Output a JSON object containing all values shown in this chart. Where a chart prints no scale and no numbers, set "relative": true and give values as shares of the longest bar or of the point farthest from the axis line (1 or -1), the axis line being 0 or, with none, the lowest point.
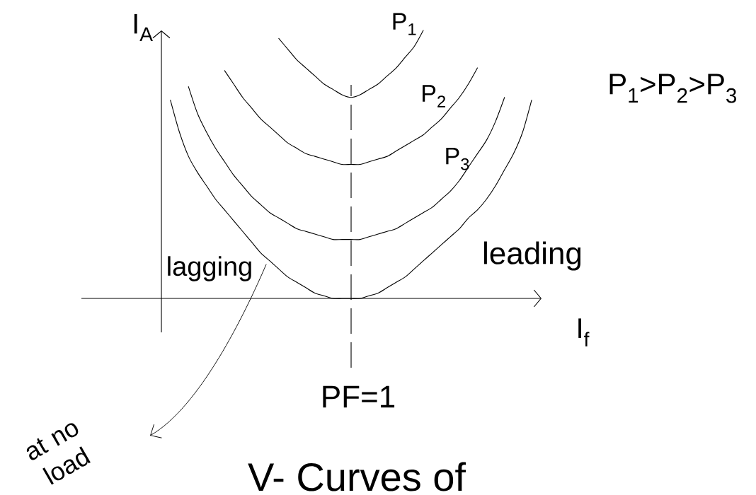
{
  "chart_data": {
    "type": "line",
    "relative": true,
    "title": "V- Curves of",
    "xlabel": "I$_{f}$",
    "ylabel": "I$_{A}$",
    "categories": [
      null,
      null,
      null,
      null,
      null,
      null,
      null,
      null,
      null,
      null,
      null,
      null,
      null,
      null,
      null,
      null,
      null,
      null,
      null,
      null,
      null,
      null,
      null,
      null,
      null,
      null,
      null,
      null,
      null,
      null,
      null,
      null,
      null,
      null,
      null,
      null,
      null,
      null,
      null,
      null,
      null
    ],
    "series": [
      {
        "name": "P$_{1}$",
        "color": "#000000",
        "values": [
          null,
          null,
          null,
          null,
          null,
          null,
          null,
          null,
          null,
          null,
          null,
          null,
          0.97,
          0.93,
          0.89,
          0.86,
          0.83,
          0.8,
          0.78,
          0.76,
          0.75,
          0.76,
          0.78,
          0.8,
          0.83,
          0.86,
          0.9,
          0.94,
          1.0,
          null,
          null,
          null,
          null,
          null,
          null,
          null,
          null,
          null,
          null,
          null,
          null
        ]
      },
      {
        "name": "P$_{2}$",
        "color": "#000000",
        "values": [
          null,
          null,
          null,
          null,
          null,
          null,
          0.85,
          0.8,
          0.75,
          0.71,
          0.67,
          0.64,
          0.61,
          0.58,
          0.56,
          0.54,
          0.53,
          0.52,
          0.51,
          0.5,
          0.5,
          0.5,
          0.51,
          0.52,
          0.53,
          0.55,
          0.57,
          0.59,
          0.61,
          0.64,
          0.67,
          0.71,
          0.75,
          0.8,
          0.86,
          null,
          null,
          null,
          null,
          null,
          null
        ]
      },
      {
        "name": "P$_{3}$",
        "color": "#000000",
        "values": [
          null,
          null,
          0.79,
          0.69,
          0.62,
          0.56,
          0.51,
          0.46,
          0.42,
          0.38,
          0.35,
          0.32,
          0.3,
          0.28,
          0.26,
          0.25,
          0.24,
          0.23,
          0.22,
          0.22,
          0.22,
          0.22,
          0.23,
          0.24,
          0.25,
          0.26,
          0.28,
          0.3,
          0.32,
          0.34,
          0.37,
          0.4,
          0.44,
          0.49,
          0.54,
          0.59,
          0.66,
          0.75,
          null,
          null,
          null
        ]
      },
      {
        "color": "#000000",
        "values": [
          0.74,
          0.62,
          0.53,
          0.47,
          0.42,
          0.37,
          0.33,
          0.29,
          0.25,
          0.21,
          0.17,
          0.14,
          0.11,
          0.08,
          0.06,
          0.04,
          0.02,
          0.01,
          0,
          0,
          0,
          0,
          0.01,
          0.02,
          0.04,
          0.06,
          0.08,
          0.11,
          0.14,
          0.17,
          0.2,
          0.23,
          0.26,
          0.3,
          0.33,
          0.37,
          0.42,
          0.48,
          0.54,
          0.62,
          0.74
        ]
      }
    ],
    "annotations": [
      "at no load",
      "lagging",
      "leading",
      "P$_{1}$>P$_{2}$>P$_{3}$",
      "PF=1"
    ]
  }
}
